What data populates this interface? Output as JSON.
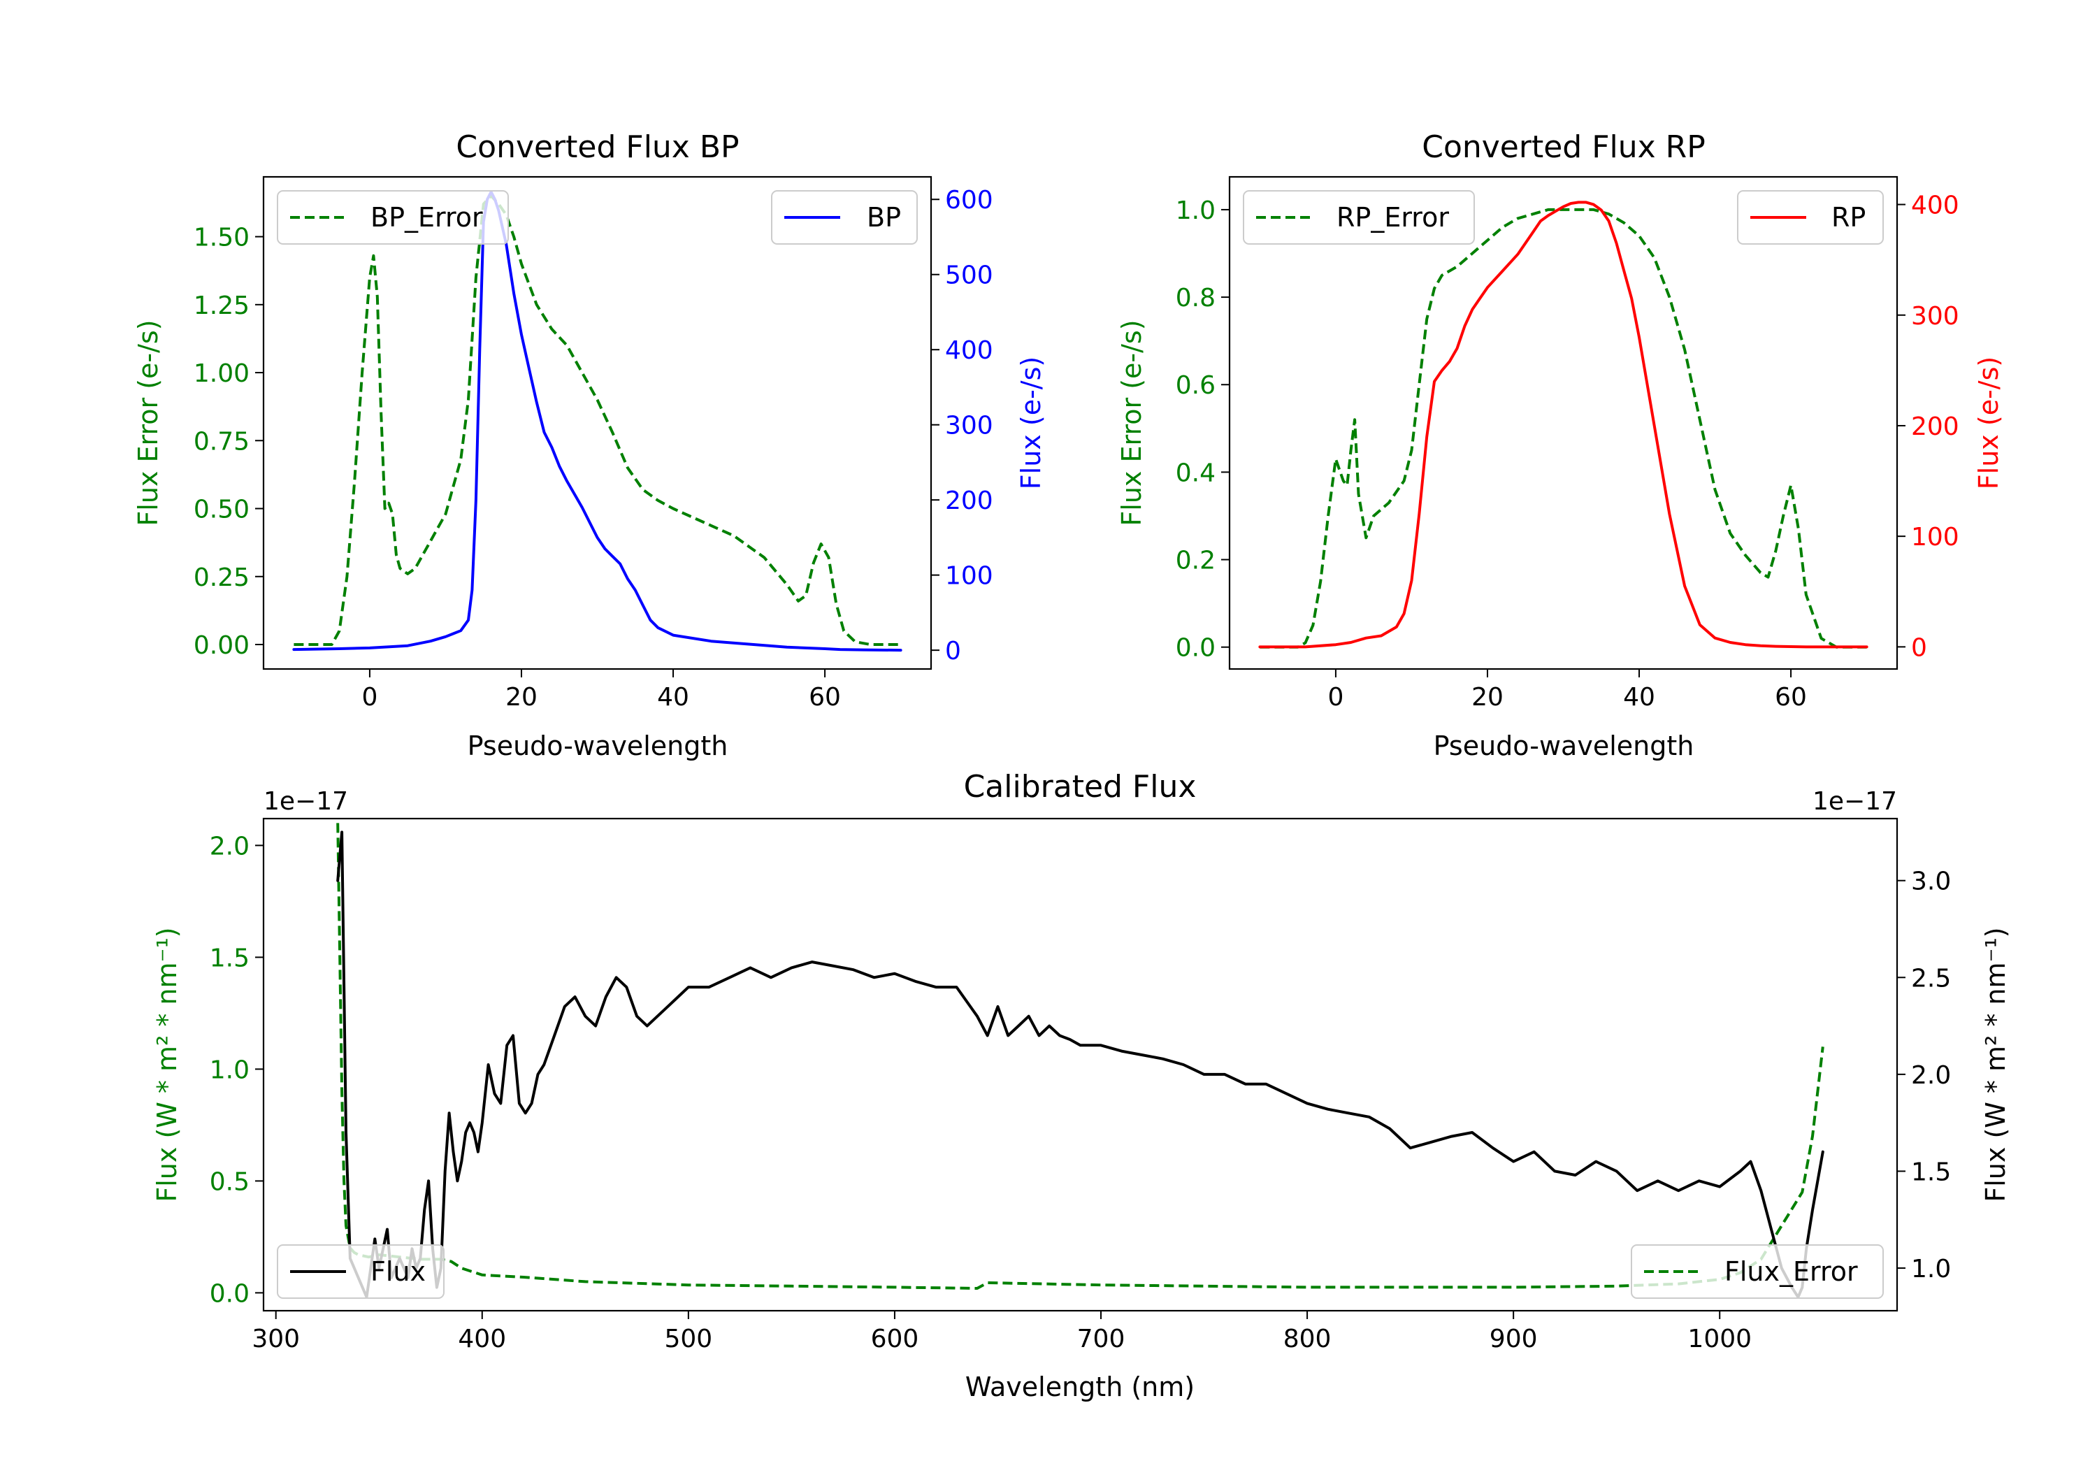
{
  "figure": {
    "chart_data": [
      {
        "type": "line",
        "title": "Converted Flux BP",
        "xlabel": "Pseudo-wavelength",
        "xlim": [
          -14,
          74
        ],
        "xticks": [
          0,
          20,
          40,
          60
        ],
        "left_axis": {
          "label": "Flux Error (e-/s)",
          "color": "#008000",
          "ylim": [
            -0.09,
            1.72
          ],
          "ticks": [
            0.0,
            0.25,
            0.5,
            0.75,
            1.0,
            1.25,
            1.5
          ],
          "tick_labels": [
            "0.00",
            "0.25",
            "0.50",
            "0.75",
            "1.00",
            "1.25",
            "1.50"
          ]
        },
        "right_axis": {
          "label": "Flux (e-/s)",
          "color": "#0000ff",
          "ylim": [
            -25,
            630
          ],
          "ticks": [
            0,
            100,
            200,
            300,
            400,
            500,
            600
          ],
          "tick_labels": [
            "0",
            "100",
            "200",
            "300",
            "400",
            "500",
            "600"
          ]
        },
        "legend_left": {
          "name": "BP_Error",
          "position": "upper left"
        },
        "legend_right": {
          "name": "BP",
          "position": "upper right"
        },
        "series": [
          {
            "name": "BP_Error",
            "axis": "left",
            "color": "#008000",
            "dashed": true,
            "x": [
              -10,
              -5,
              -4,
              -3,
              -2,
              -1,
              0,
              0.5,
              1,
              1.5,
              2,
              2.5,
              3,
              3.5,
              4,
              5,
              6,
              7,
              8,
              9,
              10,
              11,
              12,
              13,
              14,
              15,
              16,
              17,
              18,
              19,
              20,
              22,
              24,
              26,
              28,
              30,
              32,
              34,
              36,
              38,
              40,
              44,
              48,
              52,
              55,
              56.5,
              57.5,
              58.5,
              59.5,
              60.5,
              61.5,
              62.5,
              64,
              66,
              70
            ],
            "y": [
              0.0,
              0.0,
              0.05,
              0.25,
              0.6,
              1.0,
              1.35,
              1.43,
              1.28,
              0.85,
              0.5,
              0.52,
              0.48,
              0.33,
              0.28,
              0.26,
              0.28,
              0.33,
              0.38,
              0.43,
              0.48,
              0.58,
              0.68,
              0.9,
              1.35,
              1.62,
              1.65,
              1.62,
              1.58,
              1.5,
              1.4,
              1.25,
              1.16,
              1.1,
              1.0,
              0.9,
              0.78,
              0.65,
              0.57,
              0.53,
              0.5,
              0.45,
              0.4,
              0.32,
              0.22,
              0.16,
              0.18,
              0.3,
              0.37,
              0.32,
              0.15,
              0.05,
              0.01,
              0.0,
              0.0
            ]
          },
          {
            "name": "BP",
            "axis": "right",
            "color": "#0000ff",
            "dashed": false,
            "x": [
              -10,
              -4,
              0,
              5,
              8,
              10,
              11,
              12,
              13,
              13.5,
              14,
              14.5,
              15,
              15.5,
              16,
              16.5,
              17,
              18,
              19,
              20,
              21,
              22,
              23,
              24,
              25,
              26,
              28,
              30,
              31,
              32,
              33,
              34,
              35,
              36,
              37,
              38,
              40,
              45,
              50,
              55,
              60,
              62,
              65,
              70
            ],
            "y": [
              1,
              2,
              3,
              6,
              12,
              18,
              22,
              26,
              40,
              80,
              200,
              400,
              570,
              600,
              610,
              600,
              585,
              540,
              475,
              420,
              375,
              330,
              290,
              270,
              245,
              225,
              190,
              150,
              135,
              125,
              115,
              95,
              80,
              60,
              40,
              30,
              20,
              12,
              8,
              4,
              2,
              1,
              0.5,
              0
            ]
          }
        ]
      },
      {
        "type": "line",
        "title": "Converted Flux RP",
        "xlabel": "Pseudo-wavelength",
        "xlim": [
          -14,
          74
        ],
        "xticks": [
          0,
          20,
          40,
          60
        ],
        "left_axis": {
          "label": "Flux Error (e-/s)",
          "color": "#008000",
          "ylim": [
            -0.05,
            1.075
          ],
          "ticks": [
            0.0,
            0.2,
            0.4,
            0.6,
            0.8,
            1.0
          ],
          "tick_labels": [
            "0.0",
            "0.2",
            "0.4",
            "0.6",
            "0.8",
            "1.0"
          ]
        },
        "right_axis": {
          "label": "Flux (e-/s)",
          "color": "#ff0000",
          "ylim": [
            -20,
            425
          ],
          "ticks": [
            0,
            100,
            200,
            300,
            400
          ],
          "tick_labels": [
            "0",
            "100",
            "200",
            "300",
            "400"
          ]
        },
        "legend_left": {
          "name": "RP_Error",
          "position": "upper left"
        },
        "legend_right": {
          "name": "RP",
          "position": "upper right"
        },
        "series": [
          {
            "name": "RP_Error",
            "axis": "left",
            "color": "#008000",
            "dashed": true,
            "x": [
              -10,
              -5,
              -4,
              -3,
              -2,
              -1,
              0,
              1,
              1.5,
              2,
              2.5,
              3,
              3.5,
              4,
              5,
              7,
              9,
              10,
              11,
              12,
              13,
              14,
              16,
              18,
              20,
              22,
              24,
              26,
              28,
              30,
              32,
              34,
              36,
              38,
              40,
              42,
              44,
              46,
              48,
              50,
              52,
              54,
              55,
              56,
              57,
              58,
              59,
              60,
              61,
              62,
              64,
              66,
              70
            ],
            "y": [
              0.0,
              0.0,
              0.01,
              0.05,
              0.15,
              0.3,
              0.43,
              0.38,
              0.37,
              0.45,
              0.52,
              0.35,
              0.3,
              0.25,
              0.3,
              0.33,
              0.38,
              0.45,
              0.6,
              0.75,
              0.82,
              0.85,
              0.87,
              0.9,
              0.93,
              0.96,
              0.98,
              0.99,
              1.0,
              1.0,
              1.0,
              1.0,
              0.99,
              0.97,
              0.94,
              0.89,
              0.8,
              0.68,
              0.52,
              0.36,
              0.26,
              0.21,
              0.19,
              0.17,
              0.16,
              0.22,
              0.3,
              0.37,
              0.27,
              0.12,
              0.02,
              0.0,
              0.0
            ]
          },
          {
            "name": "RP",
            "axis": "right",
            "color": "#ff0000",
            "dashed": false,
            "x": [
              -10,
              -4,
              0,
              2,
              4,
              6,
              8,
              9,
              10,
              11,
              12,
              13,
              14,
              15,
              16,
              17,
              18,
              19,
              20,
              22,
              24,
              26,
              27,
              28,
              30,
              31,
              32,
              33,
              34,
              35,
              36,
              37,
              38,
              39,
              40,
              42,
              44,
              46,
              48,
              50,
              52,
              54,
              56,
              58,
              60,
              62,
              66,
              70
            ],
            "y": [
              0,
              0,
              2,
              4,
              8,
              10,
              18,
              30,
              60,
              120,
              190,
              240,
              250,
              258,
              270,
              290,
              305,
              315,
              325,
              340,
              355,
              375,
              385,
              390,
              398,
              401,
              402,
              402,
              400,
              395,
              385,
              365,
              340,
              315,
              280,
              200,
              120,
              55,
              20,
              8,
              4,
              2,
              1,
              0.5,
              0.2,
              0,
              0,
              0
            ]
          }
        ]
      },
      {
        "type": "line",
        "title": "Calibrated Flux",
        "xlabel": "Wavelength (nm)",
        "xlim": [
          294,
          1086
        ],
        "xticks": [
          300,
          400,
          500,
          600,
          700,
          800,
          900,
          1000
        ],
        "left_axis": {
          "label": "Flux (W * m² * nm⁻¹)",
          "color": "#008000",
          "offset_text": "1e−17",
          "ylim": [
            -0.08,
            2.12
          ],
          "ticks": [
            0.0,
            0.5,
            1.0,
            1.5,
            2.0
          ],
          "tick_labels": [
            "0.0",
            "0.5",
            "1.0",
            "1.5",
            "2.0"
          ]
        },
        "right_axis": {
          "label": "Flux (W * m² * nm⁻¹)",
          "color": "#000000",
          "offset_text": "1e−17",
          "ylim": [
            0.78,
            3.32
          ],
          "ticks": [
            1.0,
            1.5,
            2.0,
            2.5,
            3.0
          ],
          "tick_labels": [
            "1.0",
            "1.5",
            "2.0",
            "2.5",
            "3.0"
          ]
        },
        "legend_left": {
          "name": "Flux",
          "position": "lower left"
        },
        "legend_right": {
          "name": "Flux_Error",
          "position": "lower right"
        },
        "series": [
          {
            "name": "Flux",
            "axis": "right",
            "color": "#000000",
            "dashed": false,
            "x": [
              330,
              332,
              334,
              336,
              338,
              340,
              342,
              344,
              346,
              348,
              350,
              352,
              354,
              356,
              358,
              360,
              362,
              364,
              366,
              368,
              370,
              372,
              374,
              376,
              378,
              380,
              382,
              384,
              386,
              388,
              390,
              392,
              394,
              396,
              398,
              400,
              403,
              406,
              409,
              412,
              415,
              418,
              421,
              424,
              427,
              430,
              435,
              440,
              445,
              450,
              455,
              460,
              465,
              470,
              475,
              480,
              485,
              490,
              495,
              500,
              510,
              520,
              530,
              540,
              550,
              560,
              570,
              580,
              590,
              600,
              610,
              620,
              630,
              640,
              645,
              650,
              655,
              660,
              665,
              670,
              675,
              680,
              685,
              690,
              700,
              710,
              720,
              730,
              740,
              750,
              760,
              770,
              780,
              790,
              800,
              810,
              820,
              830,
              840,
              850,
              860,
              870,
              880,
              890,
              900,
              910,
              920,
              930,
              940,
              950,
              960,
              970,
              980,
              990,
              1000,
              1010,
              1015,
              1020,
              1025,
              1030,
              1035,
              1038,
              1040,
              1042,
              1045,
              1050
            ],
            "y": [
              3.0,
              3.25,
              1.7,
              1.05,
              1.0,
              0.95,
              0.9,
              0.85,
              1.0,
              1.15,
              1.0,
              1.1,
              1.2,
              0.95,
              1.0,
              1.05,
              1.0,
              0.95,
              1.1,
              1.0,
              1.05,
              1.3,
              1.45,
              1.1,
              0.9,
              1.0,
              1.5,
              1.8,
              1.6,
              1.45,
              1.55,
              1.7,
              1.75,
              1.7,
              1.6,
              1.75,
              2.05,
              1.9,
              1.85,
              2.15,
              2.2,
              1.85,
              1.8,
              1.85,
              2.0,
              2.05,
              2.2,
              2.35,
              2.4,
              2.3,
              2.25,
              2.4,
              2.5,
              2.45,
              2.3,
              2.25,
              2.3,
              2.35,
              2.4,
              2.45,
              2.45,
              2.5,
              2.55,
              2.5,
              2.55,
              2.58,
              2.56,
              2.54,
              2.5,
              2.52,
              2.48,
              2.45,
              2.45,
              2.3,
              2.2,
              2.35,
              2.2,
              2.25,
              2.3,
              2.2,
              2.25,
              2.2,
              2.18,
              2.15,
              2.15,
              2.12,
              2.1,
              2.08,
              2.05,
              2.0,
              2.0,
              1.95,
              1.95,
              1.9,
              1.85,
              1.82,
              1.8,
              1.78,
              1.72,
              1.62,
              1.65,
              1.68,
              1.7,
              1.62,
              1.55,
              1.6,
              1.5,
              1.48,
              1.55,
              1.5,
              1.4,
              1.45,
              1.4,
              1.45,
              1.42,
              1.5,
              1.55,
              1.4,
              1.2,
              1.0,
              0.9,
              0.85,
              0.9,
              1.1,
              1.3,
              1.6
            ]
          },
          {
            "name": "Flux_Error",
            "axis": "left",
            "color": "#008000",
            "dashed": true,
            "x": [
              330,
              331,
              332,
              333,
              334,
              336,
              338,
              340,
              345,
              350,
              360,
              370,
              380,
              385,
              390,
              400,
              420,
              450,
              500,
              550,
              600,
              640,
              645,
              700,
              800,
              900,
              950,
              980,
              1000,
              1010,
              1020,
              1030,
              1040,
              1045,
              1050
            ],
            "y": [
              2.1,
              1.5,
              0.9,
              0.5,
              0.3,
              0.2,
              0.18,
              0.17,
              0.16,
              0.17,
              0.16,
              0.15,
              0.15,
              0.14,
              0.11,
              0.08,
              0.07,
              0.05,
              0.035,
              0.03,
              0.025,
              0.02,
              0.045,
              0.035,
              0.025,
              0.025,
              0.03,
              0.04,
              0.06,
              0.09,
              0.15,
              0.3,
              0.45,
              0.7,
              1.1
            ]
          }
        ]
      }
    ]
  }
}
